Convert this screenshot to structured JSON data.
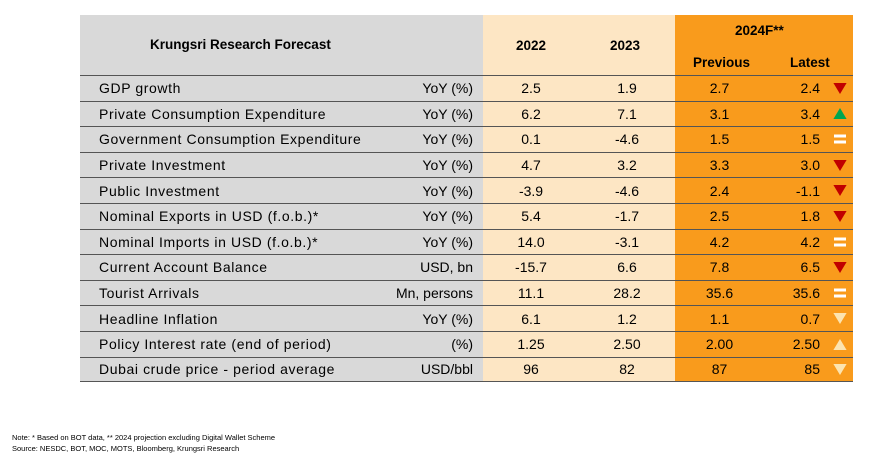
{
  "header": {
    "title": "Krungsri Research Forecast",
    "col_2022": "2022",
    "col_2023": "2023",
    "col_2024": "2024F**",
    "sub_previous": "Previous",
    "sub_latest": "Latest"
  },
  "rows": [
    {
      "label": "GDP growth",
      "unit": "YoY (%)",
      "y2022": "2.5",
      "y2023": "1.9",
      "previous": "2.7",
      "latest": "2.4",
      "indicator": "down-red"
    },
    {
      "label": "Private Consumption Expenditure",
      "unit": "YoY (%)",
      "y2022": "6.2",
      "y2023": "7.1",
      "previous": "3.1",
      "latest": "3.4",
      "indicator": "up-green"
    },
    {
      "label": "Government Consumption Expenditure",
      "unit": "YoY (%)",
      "y2022": "0.1",
      "y2023": "-4.6",
      "previous": "1.5",
      "latest": "1.5",
      "indicator": "equal"
    },
    {
      "label": "Private Investment",
      "unit": "YoY (%)",
      "y2022": "4.7",
      "y2023": "3.2",
      "previous": "3.3",
      "latest": "3.0",
      "indicator": "down-red"
    },
    {
      "label": "Public Investment",
      "unit": "YoY (%)",
      "y2022": "-3.9",
      "y2023": "-4.6",
      "previous": "2.4",
      "latest": "-1.1",
      "indicator": "down-red"
    },
    {
      "label": "Nominal Exports in USD (f.o.b.)*",
      "unit": "YoY (%)",
      "y2022": "5.4",
      "y2023": "-1.7",
      "previous": "2.5",
      "latest": "1.8",
      "indicator": "down-red"
    },
    {
      "label": "Nominal Imports in USD (f.o.b.)*",
      "unit": "YoY (%)",
      "y2022": "14.0",
      "y2023": "-3.1",
      "previous": "4.2",
      "latest": "4.2",
      "indicator": "equal"
    },
    {
      "label": "Current Account Balance",
      "unit": "USD, bn",
      "y2022": "-15.7",
      "y2023": "6.6",
      "previous": "7.8",
      "latest": "6.5",
      "indicator": "down-red"
    },
    {
      "label": "Tourist Arrivals",
      "unit": "Mn, persons",
      "y2022": "11.1",
      "y2023": "28.2",
      "previous": "35.6",
      "latest": "35.6",
      "indicator": "equal"
    },
    {
      "label": "Headline Inflation",
      "unit": "YoY (%)",
      "y2022": "6.1",
      "y2023": "1.2",
      "previous": "1.1",
      "latest": "0.7",
      "indicator": "down-light"
    },
    {
      "label": "Policy Interest rate (end of period)",
      "unit": "(%)",
      "y2022": "1.25",
      "y2023": "2.50",
      "previous": "2.00",
      "latest": "2.50",
      "indicator": "up-light"
    },
    {
      "label": "Dubai crude price - period average",
      "unit": "USD/bbl",
      "y2022": "96",
      "y2023": "82",
      "previous": "87",
      "latest": "85",
      "indicator": "down-light"
    }
  ],
  "notes": {
    "note": "Note: * Based on BOT data, ** 2024 projection excluding Digital Wallet Scheme",
    "source": "Source: NESDC, BOT, MOC, MOTS, Bloomberg, Krungsri Research"
  },
  "colors": {
    "label_bg": "#d9d9d9",
    "actual_bg": "#fde6c4",
    "forecast_bg": "#f99b1c",
    "down_red": "#c00000",
    "up_green": "#00a651",
    "light_arrow": "#fce4b0",
    "equal": "#ffffff"
  }
}
